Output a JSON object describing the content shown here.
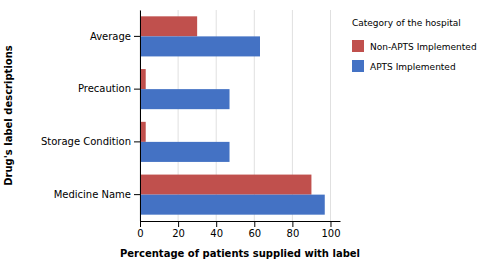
{
  "chart_data": {
    "type": "bar",
    "orientation": "horizontal",
    "categories": [
      "Medicine Name",
      "Storage Condition",
      "Precaution",
      "Average"
    ],
    "series": [
      {
        "name": "Non-APTS Implemented",
        "color": "#C0504D",
        "values": [
          90,
          3,
          3,
          30
        ]
      },
      {
        "name": "APTS Implemented",
        "color": "#4472C4",
        "values": [
          97,
          47,
          47,
          63
        ]
      }
    ],
    "xlabel": "Percentage of patients supplied with label",
    "ylabel": "Drug's label descriptions",
    "legend_title": "Category of the hospital",
    "legend": "right",
    "xlim": [
      0,
      105
    ],
    "xticks": [
      0,
      20,
      40,
      60,
      80,
      100
    ],
    "grid": true
  }
}
